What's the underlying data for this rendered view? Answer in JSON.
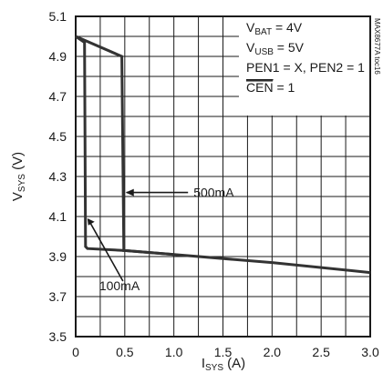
{
  "chart_data": {
    "type": "line",
    "xlabel": {
      "main": "I",
      "sub": "SYS",
      "unit": " (A)"
    },
    "ylabel": {
      "main": "V",
      "sub": "SYS",
      "unit": " (V)"
    },
    "xlim": [
      0,
      3.0
    ],
    "ylim": [
      3.5,
      5.1
    ],
    "x_ticks": [
      "0",
      "0.5",
      "1.0",
      "1.5",
      "2.0",
      "2.5",
      "3.0"
    ],
    "x_tick_values": [
      0,
      0.5,
      1.0,
      1.5,
      2.0,
      2.5,
      3.0
    ],
    "y_ticks": [
      "5.1",
      "4.9",
      "4.7",
      "4.5",
      "4.3",
      "4.1",
      "3.9",
      "3.7",
      "3.5"
    ],
    "y_tick_values": [
      5.1,
      4.9,
      4.7,
      4.5,
      4.3,
      4.1,
      3.9,
      3.7,
      3.5
    ],
    "grid": true,
    "series": [
      {
        "name": "500mA",
        "x": [
          0.0,
          0.47,
          0.49,
          0.5,
          1.0,
          2.0,
          3.0
        ],
        "y": [
          5.0,
          4.9,
          3.93,
          3.93,
          3.91,
          3.87,
          3.82
        ]
      },
      {
        "name": "100mA",
        "x": [
          0.0,
          0.09,
          0.1,
          0.12,
          0.5,
          1.0
        ],
        "y": [
          5.0,
          4.97,
          3.95,
          3.94,
          3.93,
          3.91
        ]
      }
    ],
    "annotations": [
      {
        "text": "500mA",
        "target": [
          0.49,
          4.22
        ],
        "label_at": [
          1.2,
          4.22
        ]
      },
      {
        "text": "100mA",
        "target": [
          0.1,
          4.1
        ],
        "label_at": [
          0.5,
          3.75
        ]
      }
    ],
    "conditions": [
      {
        "main": "V",
        "sub": "BAT",
        "rest": " = 4V"
      },
      {
        "main": "V",
        "sub": "USB",
        "rest": " = 5V"
      },
      {
        "main": "PEN1 = X, PEN2 = 1",
        "sub": "",
        "rest": ""
      },
      {
        "main": "CEN",
        "sub": "",
        "rest": " = 1",
        "overline": true
      }
    ],
    "watermark": "MAX8677A toc16"
  }
}
